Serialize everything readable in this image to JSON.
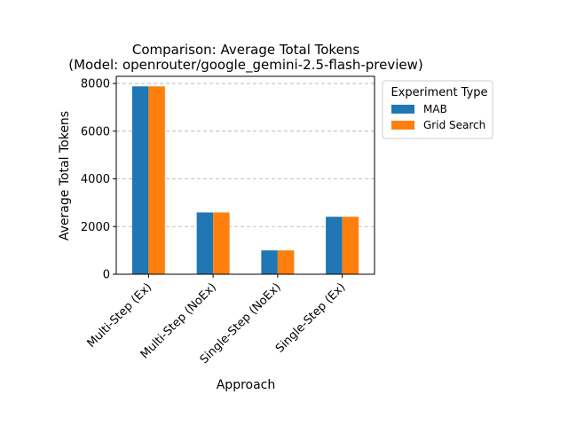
{
  "chart_data": {
    "type": "bar",
    "title": "Comparison: Average Total Tokens",
    "subtitle": "(Model: openrouter/google_gemini-2.5-flash-preview)",
    "xlabel": "Approach",
    "ylabel": "Average Total Tokens",
    "categories": [
      "Multi-Step (Ex)",
      "Multi-Step (NoEx)",
      "Single-Step (NoEx)",
      "Single-Step (Ex)"
    ],
    "series": [
      {
        "name": "MAB",
        "values": [
          7880,
          2590,
          1000,
          2410
        ],
        "color": "#1f77b4"
      },
      {
        "name": "Grid Search",
        "values": [
          7880,
          2590,
          1000,
          2410
        ],
        "color": "#ff7f0e"
      }
    ],
    "ylim": [
      0,
      8300
    ],
    "yticks": [
      0,
      2000,
      4000,
      6000,
      8000
    ],
    "grid": "y-dashed",
    "legend": {
      "title": "Experiment Type",
      "position": "outside-right"
    }
  }
}
